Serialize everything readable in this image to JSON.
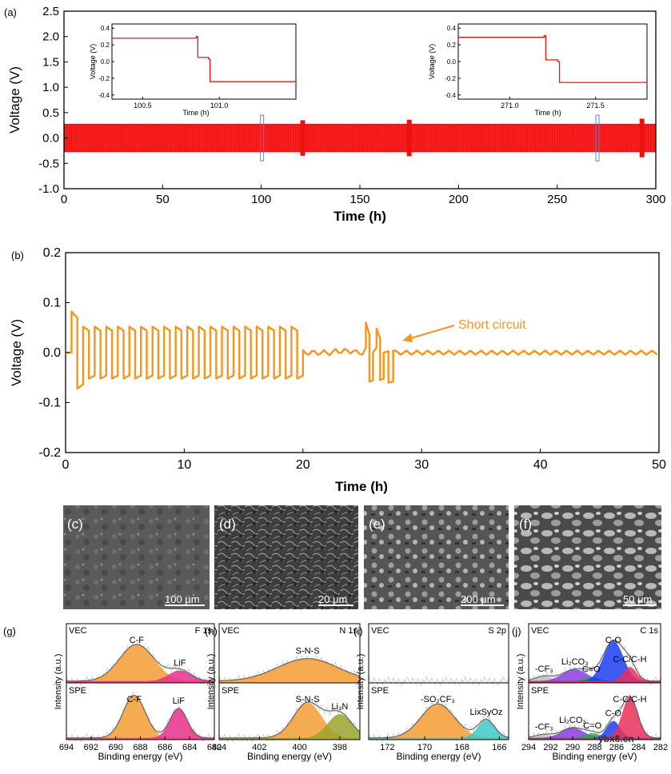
{
  "watermark": "ybx8.cn",
  "chart_data": [
    {
      "id": "a",
      "panel_label": "(a)",
      "type": "line",
      "xlabel": "Time (h)",
      "ylabel": "Voltage (V)",
      "xlim": [
        0,
        300
      ],
      "ylim": [
        -1.0,
        2.5
      ],
      "xticks": [
        "0",
        "50",
        "100",
        "150",
        "200",
        "250",
        "300"
      ],
      "yticks": [
        "-1.0",
        "-0.5",
        "0.0",
        "0.5",
        "1.0",
        "1.5",
        "2.0",
        "2.5"
      ],
      "color": "#ee1111",
      "series": [
        {
          "values_note": "dense oscillation",
          "amplitude": 0.28,
          "spikes": [
            [
              121,
              0.35
            ],
            [
              175,
              0.36
            ],
            [
              293,
              0.38
            ]
          ]
        }
      ],
      "highlight_boxes": [
        [
          100,
          101
        ],
        [
          270,
          271.5
        ]
      ],
      "insets": [
        {
          "xlabel": "Time (h)",
          "ylabel": "Voltage (V)",
          "xlim": [
            100.3,
            101.5
          ],
          "ylim": [
            -0.45,
            0.45
          ],
          "xticks": [
            "100.5",
            "101.0"
          ],
          "yticks": [
            "0.4",
            "0.2",
            "0.0",
            "-0.2",
            "-0.4"
          ],
          "x": [
            100.3,
            100.85,
            100.86,
            100.93,
            100.94,
            101.5
          ],
          "y": [
            0.28,
            0.3,
            0.05,
            0.03,
            -0.24,
            -0.27
          ]
        },
        {
          "xlabel": "Time (h)",
          "ylabel": "Voltage (V)",
          "xlim": [
            270.7,
            271.8
          ],
          "ylim": [
            -0.45,
            0.45
          ],
          "xticks": [
            "271.0",
            "271.5"
          ],
          "yticks": [
            "0.4",
            "0.2",
            "0.0",
            "-0.2",
            "-0.4"
          ],
          "x": [
            270.7,
            271.2,
            271.21,
            271.28,
            271.29,
            271.8
          ],
          "y": [
            0.29,
            0.31,
            0.02,
            0.0,
            -0.25,
            -0.28
          ]
        }
      ]
    },
    {
      "id": "b",
      "panel_label": "(b)",
      "type": "line",
      "xlabel": "Time (h)",
      "ylabel": "Voltage (V)",
      "xlim": [
        0,
        50
      ],
      "ylim": [
        -0.2,
        0.2
      ],
      "xticks": [
        "0",
        "10",
        "20",
        "30",
        "40",
        "50"
      ],
      "yticks": [
        "-0.2",
        "-0.1",
        "0.0",
        "0.1",
        "0.2"
      ],
      "color": "#f7941d",
      "annotation": "Short circuit",
      "cycles": {
        "start": 0.5,
        "end": 20.0,
        "period": 0.975,
        "high": 0.052,
        "low": -0.052,
        "first_high": 0.082,
        "first_low": -0.072
      },
      "noise_segment": {
        "start": 20.0,
        "end": 25.2,
        "amp": 0.005
      },
      "bursts": [
        [
          25.3,
          0.06,
          -0.058
        ],
        [
          26.2,
          0.048,
          -0.055
        ]
      ],
      "tail": {
        "start": 27.8,
        "end": 50,
        "period": 0.9,
        "amp": 0.004
      }
    }
  ],
  "sem_panels": [
    {
      "label": "(c)",
      "scale": "100 μm"
    },
    {
      "label": "(d)",
      "scale": "20 μm"
    },
    {
      "label": "(e)",
      "scale": "200 μm"
    },
    {
      "label": "(f)",
      "scale": "50 μm"
    }
  ],
  "xps_panels": [
    {
      "label": "(g)",
      "edge": "F 1s",
      "xlim": [
        694,
        682
      ],
      "xticks": [
        "694",
        "692",
        "690",
        "688",
        "686",
        "684",
        "682"
      ],
      "top_tag": "VEC",
      "bottom_tag": "SPE",
      "top_peaks": [
        {
          "name": "C-F",
          "center": 688.3,
          "height": 0.62,
          "width": 1.4,
          "color": "#f39c34"
        },
        {
          "name": "LiF",
          "center": 684.8,
          "height": 0.18,
          "width": 0.9,
          "color": "#e8308a"
        }
      ],
      "bottom_peaks": [
        {
          "name": "C-F",
          "center": 688.5,
          "height": 0.75,
          "width": 0.9,
          "color": "#f39c34"
        },
        {
          "name": "LiF",
          "center": 684.9,
          "height": 0.52,
          "width": 0.7,
          "color": "#e8308a"
        }
      ]
    },
    {
      "label": "(h)",
      "edge": "N 1s",
      "xlim": [
        404,
        397
      ],
      "xticks": [
        "404",
        "402",
        "400",
        "398"
      ],
      "top_tag": "VEC",
      "bottom_tag": "SPE",
      "top_peaks": [
        {
          "name": "S-N-S",
          "center": 399.6,
          "height": 0.38,
          "width": 1.5,
          "color": "#f39c34"
        }
      ],
      "bottom_peaks": [
        {
          "name": "S-N-S",
          "center": 399.6,
          "height": 0.62,
          "width": 0.7,
          "color": "#f39c34"
        },
        {
          "name": "Li₃N",
          "center": 398.0,
          "height": 0.42,
          "width": 0.6,
          "color": "#9aa52a"
        }
      ]
    },
    {
      "label": "(i)",
      "edge": "S 2p",
      "xlim": [
        173,
        165.5
      ],
      "xticks": [
        "172",
        "170",
        "168",
        "166"
      ],
      "top_tag": "VEC",
      "bottom_tag": "SPE",
      "top_peaks": [],
      "bottom_peaks": [
        {
          "name": "-SO₂CF₃",
          "center": 169.3,
          "height": 0.6,
          "width": 0.9,
          "color": "#f39c34"
        },
        {
          "name": "LixSyOz",
          "center": 166.7,
          "height": 0.32,
          "width": 0.45,
          "color": "#3ec9c4"
        }
      ]
    },
    {
      "label": "(j)",
      "edge": "C 1s",
      "xlim": [
        294,
        282
      ],
      "xticks": [
        "294",
        "292",
        "290",
        "288",
        "286",
        "284",
        "282"
      ],
      "top_tag": "VEC",
      "bottom_tag": "SPE",
      "top_peaks": [
        {
          "name": "-CF₃",
          "center": 292.6,
          "height": 0.08,
          "width": 0.8,
          "color": "#bfbfbf"
        },
        {
          "name": "Li₂CO₃",
          "center": 289.8,
          "height": 0.2,
          "width": 1.1,
          "color": "#8a3de0"
        },
        {
          "name": "C=O",
          "center": 288.3,
          "height": 0.07,
          "width": 0.7,
          "color": "#2da843"
        },
        {
          "name": "C-O",
          "center": 286.3,
          "height": 0.68,
          "width": 0.9,
          "color": "#1a3ef0"
        },
        {
          "name": "C-C/C-H",
          "center": 284.8,
          "height": 0.24,
          "width": 0.6,
          "color": "#e8305a"
        }
      ],
      "bottom_peaks": [
        {
          "name": "-CF₃",
          "center": 292.6,
          "height": 0.06,
          "width": 0.8,
          "color": "#bfbfbf"
        },
        {
          "name": "Li₂CO₃",
          "center": 290.0,
          "height": 0.18,
          "width": 1.0,
          "color": "#8a3de0"
        },
        {
          "name": "C=O",
          "center": 288.2,
          "height": 0.08,
          "width": 0.7,
          "color": "#2da843"
        },
        {
          "name": "C-O",
          "center": 286.3,
          "height": 0.3,
          "width": 0.6,
          "color": "#1a3ef0"
        },
        {
          "name": "C-C/C-H",
          "center": 284.8,
          "height": 0.72,
          "width": 0.7,
          "color": "#e8305a"
        }
      ]
    }
  ],
  "xps_common": {
    "xlabel": "Binding energy (eV)",
    "ylabel": "Intensity (a.u.)"
  }
}
